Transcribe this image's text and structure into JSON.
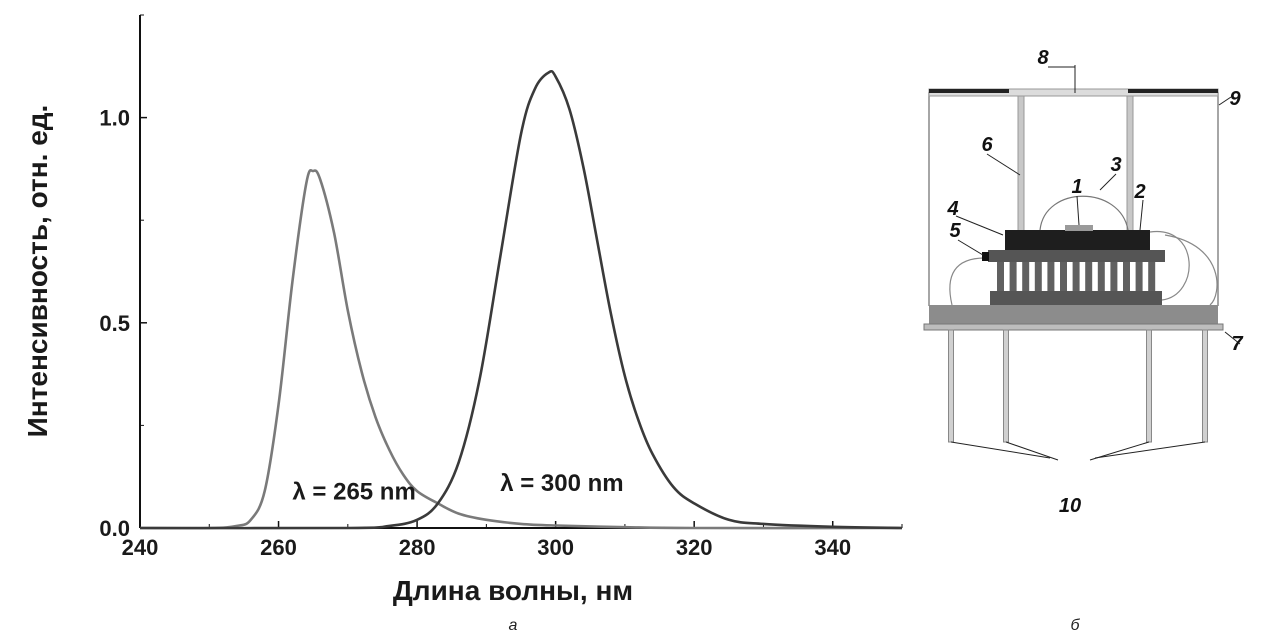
{
  "chart_data": {
    "type": "line",
    "xlabel": "Длина волны, нм",
    "ylabel": "Интенсивность, отн. ед.",
    "xlim": [
      240,
      350
    ],
    "ylim": [
      0,
      1.25
    ],
    "x_ticks": [
      "240",
      "260",
      "280",
      "300",
      "320",
      "340"
    ],
    "y_ticks": [
      "0.0",
      "0.5",
      "1.0"
    ],
    "series": [
      {
        "name": "λ = 265 nm",
        "color": "#7a7a7a",
        "x": [
          240,
          250,
          254,
          256,
          258,
          260,
          262,
          264,
          265,
          266,
          268,
          270,
          272,
          274,
          276,
          278,
          280,
          283,
          286,
          290,
          295,
          300,
          310,
          320,
          350
        ],
        "y": [
          0,
          0,
          0.005,
          0.02,
          0.09,
          0.3,
          0.6,
          0.84,
          0.87,
          0.85,
          0.72,
          0.53,
          0.38,
          0.27,
          0.19,
          0.13,
          0.09,
          0.06,
          0.035,
          0.02,
          0.01,
          0.006,
          0.002,
          0,
          0
        ]
      },
      {
        "name": "λ = 300 nm",
        "color": "#3a3a3a",
        "x": [
          240,
          270,
          276,
          280,
          283,
          286,
          289,
          292,
          295,
          297,
          299,
          300,
          302,
          304,
          306,
          308,
          310,
          312,
          314,
          317,
          320,
          325,
          330,
          340,
          350
        ],
        "y": [
          0,
          0,
          0.005,
          0.02,
          0.06,
          0.16,
          0.36,
          0.66,
          0.96,
          1.07,
          1.11,
          1.1,
          1.02,
          0.88,
          0.7,
          0.52,
          0.37,
          0.26,
          0.18,
          0.1,
          0.06,
          0.02,
          0.01,
          0.003,
          0
        ]
      }
    ],
    "annotations": [
      {
        "text": "λ = 265 nm",
        "x": 262,
        "y": 0.07
      },
      {
        "text": "λ = 300 nm",
        "x": 292,
        "y": 0.09
      }
    ]
  },
  "captions": {
    "left": "а",
    "right": "б"
  },
  "device_diagram": {
    "callouts": [
      "1",
      "2",
      "3",
      "4",
      "5",
      "6",
      "7",
      "8",
      "9",
      "10"
    ]
  }
}
